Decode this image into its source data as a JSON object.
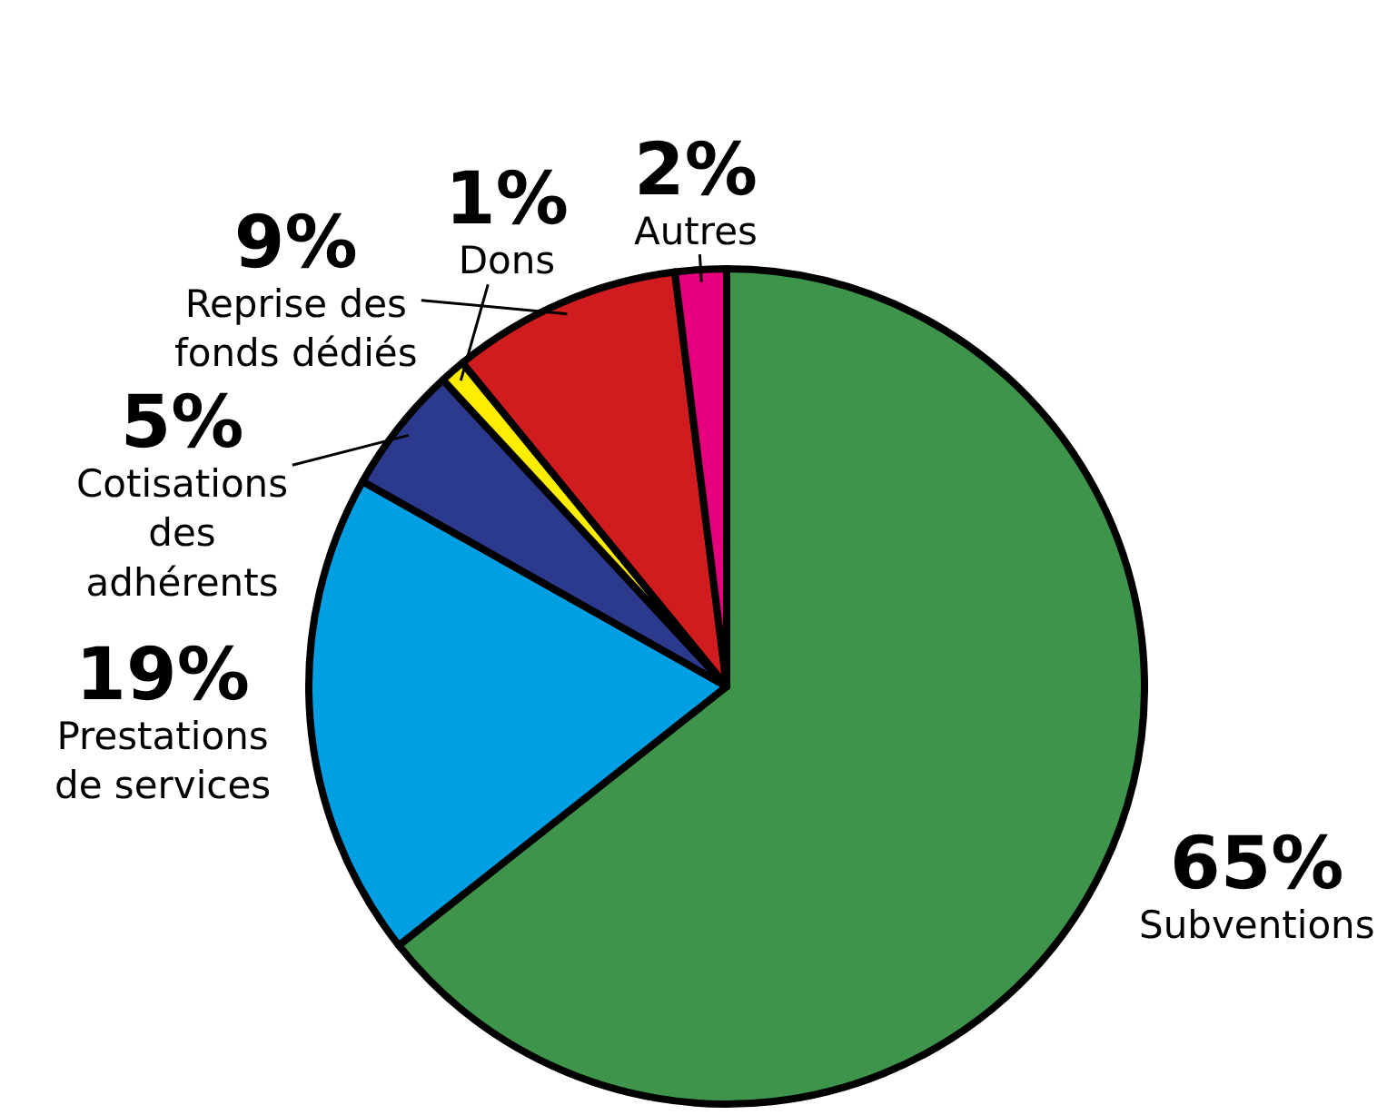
{
  "chart_data": {
    "type": "pie",
    "categories": [
      "Subventions",
      "Prestations de services",
      "Cotisations des adhérents",
      "Dons",
      "Reprise des fonds dédiés",
      "Autres"
    ],
    "values": [
      65,
      19,
      5,
      1,
      9,
      2
    ],
    "value_labels": [
      "65%",
      "19%",
      "5%",
      "1%",
      "9%",
      "2%"
    ],
    "colors": [
      "#3d944a",
      "#009fe3",
      "#2b3a8c",
      "#ffed00",
      "#d01c1f",
      "#e6007e"
    ],
    "legend": false
  }
}
